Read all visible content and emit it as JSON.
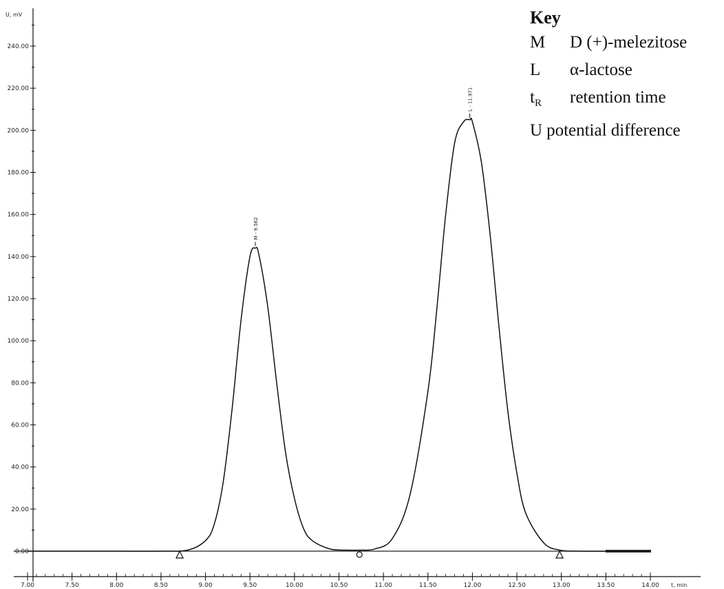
{
  "key": {
    "title": "Key",
    "entries": [
      {
        "symbol": "M",
        "text": "D (+)-melezitose"
      },
      {
        "symbol": "L",
        "text": "α-lactose"
      },
      {
        "symbol": "t",
        "subscript": "R",
        "text": "retention time"
      },
      {
        "symbol": "U",
        "text": "potential difference"
      }
    ]
  },
  "chart_data": {
    "type": "line",
    "xlabel": "t, min",
    "ylabel": "U, mV",
    "xlim": [
      7.0,
      14.0
    ],
    "ylim": [
      0,
      250
    ],
    "x_ticks": [
      "7.00",
      "7.50",
      "8.00",
      "8.50",
      "9.00",
      "9.50",
      "10.00",
      "10.50",
      "11.00",
      "11.50",
      "12.00",
      "12.50",
      "13.00",
      "13.50",
      "14.00"
    ],
    "y_ticks": [
      "0.00",
      "20.00",
      "40.00",
      "60.00",
      "80.00",
      "100.00",
      "120.00",
      "140.00",
      "160.00",
      "180.00",
      "200.00",
      "220.00",
      "240.00"
    ],
    "y_tick_values": [
      0,
      20,
      40,
      60,
      80,
      100,
      120,
      140,
      160,
      180,
      200,
      220,
      240
    ],
    "grid": false,
    "peaks": [
      {
        "label": "M - 9.562",
        "retention_time": 9.56,
        "height": 144
      },
      {
        "label": "L - 11.971",
        "retention_time": 11.97,
        "height": 205
      }
    ],
    "baseline_markers": [
      {
        "x": 8.71,
        "shape": "triangle"
      },
      {
        "x": 10.73,
        "shape": "circle"
      },
      {
        "x": 12.98,
        "shape": "triangle"
      }
    ],
    "series": [
      {
        "x": [
          7.0,
          7.5,
          8.0,
          8.5,
          8.8,
          9.0,
          9.1,
          9.2,
          9.3,
          9.4,
          9.5,
          9.56,
          9.6,
          9.7,
          9.8,
          9.9,
          10.0,
          10.1,
          10.2,
          10.4,
          10.6,
          10.73,
          10.9,
          11.1,
          11.3,
          11.5,
          11.6,
          11.7,
          11.8,
          11.9,
          11.97,
          12.0,
          12.1,
          12.2,
          12.3,
          12.4,
          12.5,
          12.6,
          12.8,
          12.98,
          13.2,
          13.6,
          14.0
        ],
        "values": [
          0,
          0,
          0,
          0,
          0.5,
          5,
          13,
          33,
          68,
          110,
          140,
          144,
          141,
          116,
          80,
          47,
          25,
          11,
          5,
          1,
          0.5,
          0.5,
          1,
          6,
          27,
          76,
          115,
          160,
          194,
          204,
          205,
          204,
          185,
          150,
          106,
          66,
          37,
          18,
          4,
          0.5,
          0,
          0,
          0
        ]
      }
    ]
  }
}
